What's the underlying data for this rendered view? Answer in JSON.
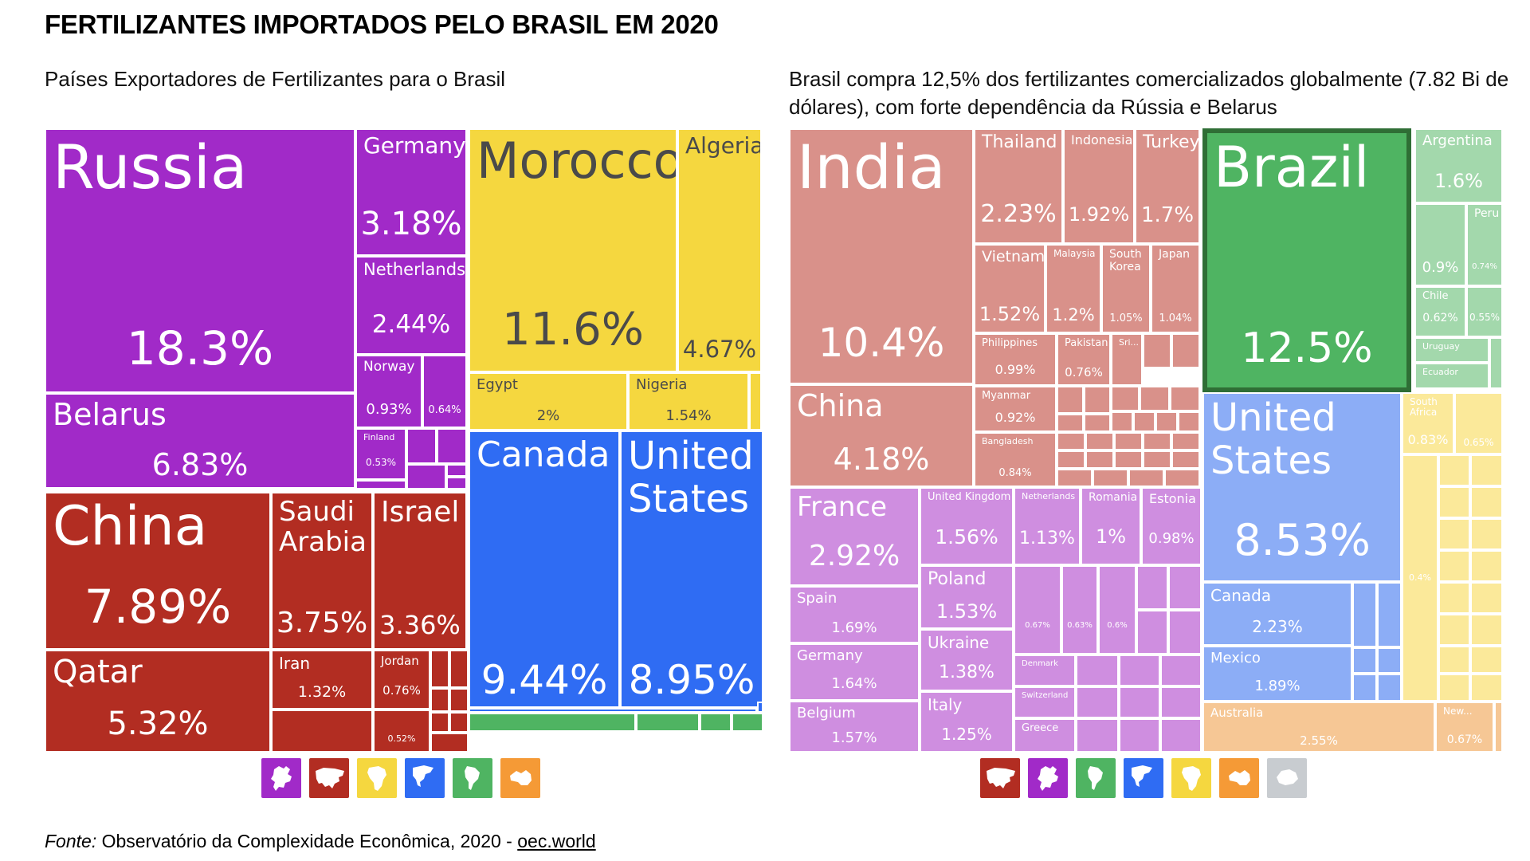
{
  "title": "FERTILIZANTES IMPORTADOS PELO BRASIL EM 2020",
  "left_subtitle": "Países Exportadores de Fertilizantes para o Brasil",
  "right_subtitle": "Brasil compra 12,5% dos fertilizantes comercializados globalmente (7.82 Bi de dólares), com forte dependência da Rússia e Belarus",
  "source": {
    "label": "Fonte:",
    "text": "Observatório da Complexidade Econômica, 2020 - ",
    "link": "oec.world"
  },
  "colors": {
    "europe": "#a12ac8",
    "asia": "#b22d22",
    "africa": "#f5d73f",
    "north_america": "#2f6cf3",
    "south_america": "#4fb462",
    "oceania": "#f59a36",
    "antarctica": "#c8ccd0",
    "asia_light": "#d9918a",
    "europe_light": "#cf8ee0",
    "africa_light": "#fbe99a",
    "north_america_light": "#8cadf6",
    "south_america_light": "#a3d8ac",
    "oceania_light": "#f6c795"
  },
  "chart_data": [
    {
      "type": "treemap",
      "title": "Países Exportadores de Fertilizantes para o Brasil",
      "unit": "% share",
      "items": [
        {
          "name": "Russia",
          "value": 18.3,
          "region": "europe"
        },
        {
          "name": "Germany",
          "value": 3.18,
          "region": "europe"
        },
        {
          "name": "Netherlands",
          "value": 2.44,
          "region": "europe"
        },
        {
          "name": "Norway",
          "value": 0.93,
          "region": "europe"
        },
        {
          "name": "",
          "value": 0.64,
          "region": "europe"
        },
        {
          "name": "Finland",
          "value": 0.53,
          "region": "europe"
        },
        {
          "name": "Belarus",
          "value": 6.83,
          "region": "europe"
        },
        {
          "name": "China",
          "value": 7.89,
          "region": "asia"
        },
        {
          "name": "Saudi Arabia",
          "value": 3.75,
          "region": "asia"
        },
        {
          "name": "Israel",
          "value": 3.36,
          "region": "asia"
        },
        {
          "name": "Qatar",
          "value": 5.32,
          "region": "asia"
        },
        {
          "name": "Iran",
          "value": 1.32,
          "region": "asia"
        },
        {
          "name": "Jordan",
          "value": 0.76,
          "region": "asia"
        },
        {
          "name": "",
          "value": 0.52,
          "region": "asia"
        },
        {
          "name": "Morocco",
          "value": 11.6,
          "region": "africa"
        },
        {
          "name": "Algeria",
          "value": 4.67,
          "region": "africa"
        },
        {
          "name": "Egypt",
          "value": 2,
          "region": "africa"
        },
        {
          "name": "Nigeria",
          "value": 1.54,
          "region": "africa"
        },
        {
          "name": "Canada",
          "value": 9.44,
          "region": "north_america"
        },
        {
          "name": "United States",
          "value": 8.95,
          "region": "north_america"
        }
      ],
      "legend": [
        "europe",
        "asia",
        "africa",
        "north_america",
        "south_america",
        "oceania"
      ]
    },
    {
      "type": "treemap",
      "title": "Brasil compra 12,5% dos fertilizantes comercializados globalmente",
      "unit": "% share",
      "items": [
        {
          "name": "India",
          "value": 10.4,
          "region": "asia"
        },
        {
          "name": "China",
          "value": 4.18,
          "region": "asia"
        },
        {
          "name": "Thailand",
          "value": 2.23,
          "region": "asia"
        },
        {
          "name": "Indonesia",
          "value": 1.92,
          "region": "asia"
        },
        {
          "name": "Turkey",
          "value": 1.7,
          "region": "asia"
        },
        {
          "name": "Vietnam",
          "value": 1.52,
          "region": "asia"
        },
        {
          "name": "Malaysia",
          "value": 1.2,
          "region": "asia"
        },
        {
          "name": "South Korea",
          "value": 1.05,
          "region": "asia"
        },
        {
          "name": "Japan",
          "value": 1.04,
          "region": "asia"
        },
        {
          "name": "Philippines",
          "value": 0.99,
          "region": "asia"
        },
        {
          "name": "Pakistan",
          "value": 0.76,
          "region": "asia"
        },
        {
          "name": "Sri...",
          "value": null,
          "region": "asia"
        },
        {
          "name": "Myanmar",
          "value": 0.92,
          "region": "asia"
        },
        {
          "name": "Bangladesh",
          "value": 0.84,
          "region": "asia"
        },
        {
          "name": "France",
          "value": 2.92,
          "region": "europe"
        },
        {
          "name": "Spain",
          "value": 1.69,
          "region": "europe"
        },
        {
          "name": "Germany",
          "value": 1.64,
          "region": "europe"
        },
        {
          "name": "Belgium",
          "value": 1.57,
          "region": "europe"
        },
        {
          "name": "United Kingdom",
          "value": 1.56,
          "region": "europe"
        },
        {
          "name": "Netherlands",
          "value": 1.13,
          "region": "europe"
        },
        {
          "name": "Romania",
          "value": 1,
          "region": "europe"
        },
        {
          "name": "Estonia",
          "value": 0.98,
          "region": "europe"
        },
        {
          "name": "Poland",
          "value": 1.53,
          "region": "europe"
        },
        {
          "name": "Ukraine",
          "value": 1.38,
          "region": "europe"
        },
        {
          "name": "Italy",
          "value": 1.25,
          "region": "europe"
        },
        {
          "name": "Denmark",
          "value": null,
          "region": "europe"
        },
        {
          "name": "Switzerland",
          "value": null,
          "region": "europe"
        },
        {
          "name": "Greece",
          "value": null,
          "region": "europe"
        },
        {
          "name": "",
          "value": 0.67,
          "region": "europe"
        },
        {
          "name": "",
          "value": 0.63,
          "region": "europe"
        },
        {
          "name": "",
          "value": 0.6,
          "region": "europe"
        },
        {
          "name": "Brazil",
          "value": 12.5,
          "region": "south_america"
        },
        {
          "name": "Argentina",
          "value": 1.6,
          "region": "south_america"
        },
        {
          "name": "",
          "value": 0.9,
          "region": "south_america"
        },
        {
          "name": "Peru",
          "value": 0.74,
          "region": "south_america"
        },
        {
          "name": "Chile",
          "value": 0.62,
          "region": "south_america"
        },
        {
          "name": "",
          "value": 0.55,
          "region": "south_america"
        },
        {
          "name": "Uruguay",
          "value": null,
          "region": "south_america"
        },
        {
          "name": "Ecuador",
          "value": null,
          "region": "south_america"
        },
        {
          "name": "United States",
          "value": 8.53,
          "region": "north_america"
        },
        {
          "name": "Canada",
          "value": 2.23,
          "region": "north_america"
        },
        {
          "name": "Mexico",
          "value": 1.89,
          "region": "north_america"
        },
        {
          "name": "South Africa",
          "value": 0.83,
          "region": "africa"
        },
        {
          "name": "",
          "value": 0.65,
          "region": "africa"
        },
        {
          "name": "",
          "value": 0.4,
          "region": "africa"
        },
        {
          "name": "Australia",
          "value": 2.55,
          "region": "oceania"
        },
        {
          "name": "New...",
          "value": 0.67,
          "region": "oceania"
        }
      ],
      "legend": [
        "asia",
        "europe",
        "south_america",
        "north_america",
        "africa",
        "oceania",
        "antarctica"
      ]
    }
  ]
}
